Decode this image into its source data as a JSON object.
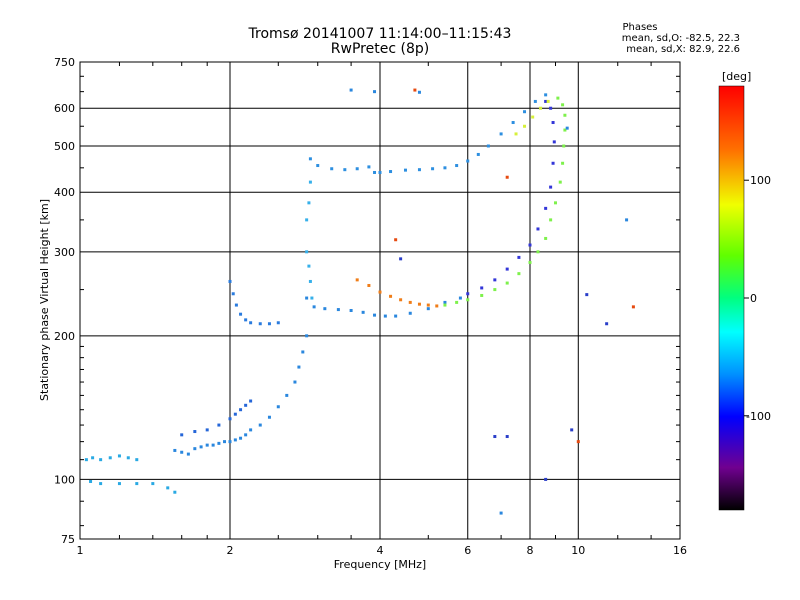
{
  "chart_data": {
    "type": "scatter",
    "title": "Tromsø 20141007 11:14:00–11:15:43",
    "subtitle": "RwPretec (8p)",
    "phases_title": "Phases",
    "phases_o": "mean, sd,O: -82.5, 22.3",
    "phases_x": "mean, sd,X:  82.9, 22.6",
    "xlabel": "Frequency [MHz]",
    "ylabel": "Stationary phase Virtual Height [km]",
    "xscale": "log",
    "yscale": "log",
    "xlim": [
      1,
      16
    ],
    "ylim": [
      75,
      750
    ],
    "x_ticks": [
      1,
      2,
      4,
      6,
      8,
      10,
      16
    ],
    "y_ticks": [
      75,
      100,
      200,
      300,
      400,
      500,
      600,
      750
    ],
    "grid": true,
    "colorbar": {
      "label": "[deg]",
      "range": [
        -180,
        180
      ],
      "ticks": [
        100,
        0,
        -100
      ]
    },
    "series": [
      {
        "color": "#29a9e3",
        "points": [
          [
            1.03,
            110
          ],
          [
            1.06,
            111
          ],
          [
            1.1,
            110
          ],
          [
            1.15,
            111
          ],
          [
            1.2,
            112
          ],
          [
            1.25,
            111
          ],
          [
            1.3,
            110
          ],
          [
            1.05,
            99
          ],
          [
            1.1,
            98
          ],
          [
            1.2,
            98
          ],
          [
            1.3,
            98
          ],
          [
            1.4,
            98
          ],
          [
            1.5,
            96
          ],
          [
            1.55,
            94
          ]
        ]
      },
      {
        "color": "#2a87de",
        "points": [
          [
            1.55,
            115
          ],
          [
            1.6,
            114
          ],
          [
            1.65,
            113
          ],
          [
            1.7,
            116
          ],
          [
            1.75,
            117
          ],
          [
            1.8,
            118
          ],
          [
            1.85,
            118
          ],
          [
            1.9,
            119
          ],
          [
            1.95,
            120
          ],
          [
            2.0,
            120
          ],
          [
            2.05,
            121
          ],
          [
            2.1,
            122
          ],
          [
            2.15,
            124
          ],
          [
            2.2,
            127
          ],
          [
            2.3,
            130
          ],
          [
            2.4,
            135
          ],
          [
            2.5,
            142
          ],
          [
            2.6,
            150
          ],
          [
            2.7,
            160
          ],
          [
            2.75,
            172
          ],
          [
            2.8,
            185
          ],
          [
            2.85,
            200
          ]
        ]
      },
      {
        "color": "#2566d8",
        "points": [
          [
            1.6,
            124
          ],
          [
            1.7,
            126
          ],
          [
            1.8,
            127
          ],
          [
            1.9,
            130
          ],
          [
            2.0,
            134
          ],
          [
            2.05,
            137
          ],
          [
            2.1,
            140
          ],
          [
            2.15,
            143
          ],
          [
            2.2,
            146
          ]
        ]
      },
      {
        "color": "#2a7bde",
        "points": [
          [
            2.0,
            260
          ],
          [
            2.03,
            245
          ],
          [
            2.06,
            232
          ],
          [
            2.1,
            222
          ],
          [
            2.15,
            216
          ],
          [
            2.2,
            213
          ],
          [
            2.3,
            212
          ],
          [
            2.4,
            212
          ],
          [
            2.5,
            213
          ]
        ]
      },
      {
        "color": "#2a87de",
        "points": [
          [
            2.85,
            240
          ],
          [
            2.95,
            230
          ],
          [
            3.1,
            228
          ],
          [
            3.3,
            227
          ],
          [
            3.5,
            226
          ],
          [
            3.7,
            224
          ],
          [
            3.9,
            221
          ],
          [
            4.1,
            220
          ],
          [
            4.3,
            220
          ],
          [
            4.6,
            223
          ],
          [
            5.0,
            228
          ],
          [
            5.4,
            235
          ],
          [
            5.8,
            240
          ]
        ]
      },
      {
        "color": "#36b0ea",
        "points": [
          [
            2.85,
            300
          ],
          [
            2.88,
            280
          ],
          [
            2.9,
            260
          ],
          [
            2.92,
            240
          ],
          [
            2.85,
            350
          ],
          [
            2.88,
            380
          ],
          [
            2.9,
            420
          ]
        ]
      },
      {
        "color": "#2d8fe0",
        "points": [
          [
            2.9,
            470
          ],
          [
            3.0,
            455
          ],
          [
            3.2,
            448
          ],
          [
            3.4,
            446
          ],
          [
            3.6,
            448
          ],
          [
            3.8,
            452
          ],
          [
            3.9,
            440
          ],
          [
            4.0,
            440
          ],
          [
            4.2,
            442
          ],
          [
            4.5,
            445
          ],
          [
            4.8,
            446
          ],
          [
            5.1,
            448
          ],
          [
            5.4,
            450
          ],
          [
            5.7,
            455
          ],
          [
            6.0,
            465
          ],
          [
            6.3,
            480
          ],
          [
            6.6,
            500
          ],
          [
            7.0,
            530
          ],
          [
            7.4,
            560
          ],
          [
            7.8,
            590
          ],
          [
            8.2,
            620
          ],
          [
            8.6,
            640
          ]
        ]
      },
      {
        "color": "#f07d18",
        "points": [
          [
            3.6,
            262
          ],
          [
            3.8,
            255
          ],
          [
            4.0,
            247
          ],
          [
            4.2,
            242
          ],
          [
            4.4,
            238
          ],
          [
            4.6,
            235
          ],
          [
            4.8,
            233
          ],
          [
            5.0,
            232
          ],
          [
            5.2,
            231
          ]
        ]
      },
      {
        "color": "#7ef14b",
        "points": [
          [
            5.4,
            232
          ],
          [
            5.7,
            235
          ],
          [
            6.0,
            238
          ],
          [
            6.4,
            243
          ],
          [
            6.8,
            250
          ],
          [
            7.2,
            258
          ],
          [
            7.6,
            270
          ],
          [
            8.0,
            285
          ],
          [
            8.3,
            300
          ],
          [
            8.6,
            320
          ],
          [
            8.8,
            350
          ],
          [
            9.0,
            380
          ],
          [
            9.2,
            420
          ],
          [
            9.3,
            460
          ],
          [
            9.35,
            500
          ],
          [
            9.4,
            540
          ],
          [
            9.4,
            580
          ],
          [
            9.3,
            610
          ],
          [
            9.1,
            630
          ]
        ]
      },
      {
        "color": "#3336d8",
        "points": [
          [
            6.0,
            245
          ],
          [
            6.4,
            252
          ],
          [
            6.8,
            262
          ],
          [
            7.2,
            276
          ],
          [
            7.6,
            292
          ],
          [
            8.0,
            310
          ],
          [
            8.3,
            335
          ],
          [
            8.6,
            370
          ],
          [
            8.8,
            410
          ],
          [
            8.9,
            460
          ],
          [
            8.95,
            510
          ],
          [
            8.9,
            560
          ],
          [
            8.8,
            600
          ],
          [
            8.6,
            620
          ]
        ]
      },
      {
        "color": "#d6f03a",
        "points": [
          [
            7.5,
            530
          ],
          [
            7.8,
            550
          ],
          [
            8.1,
            575
          ],
          [
            8.4,
            600
          ],
          [
            8.7,
            620
          ]
        ]
      },
      {
        "color": "#2a87de",
        "points": [
          [
            3.5,
            655
          ],
          [
            3.9,
            650
          ],
          [
            4.8,
            648
          ],
          [
            7.0,
            85
          ],
          [
            9.5,
            545
          ],
          [
            12.5,
            350
          ]
        ]
      },
      {
        "color": "#e64a10",
        "points": [
          [
            4.7,
            655
          ],
          [
            4.3,
            318
          ],
          [
            7.2,
            430
          ],
          [
            10.0,
            120
          ],
          [
            12.9,
            230
          ]
        ]
      },
      {
        "color": "#2a3ec9",
        "points": [
          [
            4.4,
            290
          ],
          [
            9.7,
            127
          ],
          [
            10.4,
            244
          ],
          [
            11.4,
            212
          ],
          [
            6.8,
            123
          ],
          [
            7.2,
            123
          ],
          [
            8.6,
            100
          ]
        ]
      }
    ]
  }
}
